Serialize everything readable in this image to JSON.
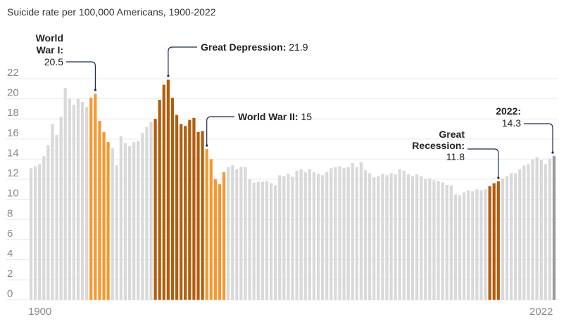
{
  "chart_data": {
    "type": "bar",
    "title": "Suicide rate per 100,000 Americans, 1900-2022",
    "xlabel": "",
    "ylabel": "",
    "ylim": [
      0,
      22
    ],
    "y_ticks": [
      "0",
      "2",
      "4",
      "6",
      "8",
      "10",
      "12",
      "14",
      "16",
      "18",
      "20",
      "22"
    ],
    "x_tick_labels": [
      "1900",
      "2022"
    ],
    "grid": true,
    "x_start": 1900,
    "x_end": 2022,
    "values": [
      13.1,
      13.3,
      13.5,
      14.3,
      15.4,
      17.5,
      16.4,
      18.2,
      21.1,
      20.0,
      19.4,
      20.0,
      19.7,
      19.2,
      20.1,
      20.5,
      17.8,
      16.7,
      15.7,
      15.1,
      13.4,
      16.3,
      15.6,
      15.3,
      15.7,
      15.8,
      16.6,
      17.2,
      17.7,
      18.0,
      19.9,
      21.4,
      21.9,
      20.1,
      18.4,
      17.5,
      17.3,
      17.9,
      18.1,
      16.7,
      16.8,
      15.0,
      14.0,
      12.0,
      11.5,
      12.7,
      13.2,
      13.4,
      13.0,
      13.2,
      13.2,
      12.0,
      11.65,
      11.75,
      11.75,
      11.8,
      11.6,
      11.4,
      12.4,
      12.3,
      12.55,
      12.25,
      12.85,
      13.0,
      12.7,
      13.0,
      12.7,
      12.55,
      12.4,
      12.7,
      13.1,
      13.2,
      13.3,
      13.1,
      13.2,
      13.6,
      13.2,
      13.7,
      12.9,
      12.6,
      12.2,
      12.3,
      12.55,
      12.4,
      12.6,
      12.5,
      13.0,
      12.85,
      12.5,
      12.3,
      12.5,
      12.3,
      12.0,
      12.1,
      11.9,
      11.8,
      11.7,
      11.45,
      11.4,
      10.5,
      10.4,
      10.7,
      10.9,
      10.8,
      11.0,
      10.9,
      11.0,
      11.3,
      11.6,
      11.8,
      12.1,
      12.3,
      12.6,
      12.6,
      13.0,
      13.35,
      13.5,
      13.95,
      14.2,
      13.9,
      13.5,
      14.05,
      14.3
    ],
    "highlights": [
      {
        "name": "World War I",
        "from": 1914,
        "to": 1918,
        "color": "#f7972f"
      },
      {
        "name": "Great Depression",
        "from": 1929,
        "to": 1940,
        "color": "#b35c0c"
      },
      {
        "name": "World War II",
        "from": 1941,
        "to": 1945,
        "color": "#f7972f"
      },
      {
        "name": "Great Recession",
        "from": 2007,
        "to": 2009,
        "color": "#b35c0c"
      },
      {
        "name": "2022",
        "from": 2022,
        "to": 2022,
        "color": "#9a9a9a"
      }
    ],
    "default_color": "#d9d9d9",
    "annotations": {
      "wwi": {
        "line1": "World",
        "line2": "War I:",
        "value": "20.5",
        "year": 1915
      },
      "depression": {
        "label": "Great Depression:",
        "value": " 21.9",
        "year": 1932
      },
      "wwii": {
        "label": "World War II:",
        "value": " 15",
        "year": 1941
      },
      "recession": {
        "line1": "Great",
        "line2": "Recession:",
        "value": "11.8",
        "year": 2009
      },
      "latest": {
        "label": "2022:",
        "value": "14.3",
        "year": 2022
      }
    }
  }
}
